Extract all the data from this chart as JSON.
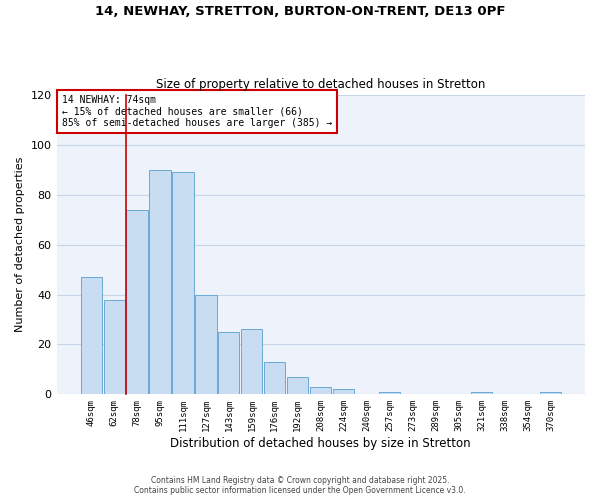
{
  "title": "14, NEWHAY, STRETTON, BURTON-ON-TRENT, DE13 0PF",
  "subtitle": "Size of property relative to detached houses in Stretton",
  "xlabel": "Distribution of detached houses by size in Stretton",
  "ylabel": "Number of detached properties",
  "bar_labels": [
    "46sqm",
    "62sqm",
    "78sqm",
    "95sqm",
    "111sqm",
    "127sqm",
    "143sqm",
    "159sqm",
    "176sqm",
    "192sqm",
    "208sqm",
    "224sqm",
    "240sqm",
    "257sqm",
    "273sqm",
    "289sqm",
    "305sqm",
    "321sqm",
    "338sqm",
    "354sqm",
    "370sqm"
  ],
  "bar_values": [
    47,
    38,
    74,
    90,
    89,
    40,
    25,
    26,
    13,
    7,
    3,
    2,
    0,
    1,
    0,
    0,
    0,
    1,
    0,
    0,
    1
  ],
  "bar_color": "#c9ddf2",
  "bar_edge_color": "#6aaad4",
  "ref_line_index": 2,
  "ref_line_color": "#cc0000",
  "annotation_title": "14 NEWHAY: 74sqm",
  "annotation_line1": "← 15% of detached houses are smaller (66)",
  "annotation_line2": "85% of semi-detached houses are larger (385) →",
  "annotation_box_facecolor": "#ffffff",
  "annotation_box_edgecolor": "#cc0000",
  "ylim": [
    0,
    120
  ],
  "yticks": [
    0,
    20,
    40,
    60,
    80,
    100,
    120
  ],
  "background_color": "#ffffff",
  "plot_bg_color": "#eef3fb",
  "footer1": "Contains HM Land Registry data © Crown copyright and database right 2025.",
  "footer2": "Contains public sector information licensed under the Open Government Licence v3.0.",
  "grid_color": "#c8d4e8",
  "title_fontsize": 9.5,
  "subtitle_fontsize": 8.5
}
